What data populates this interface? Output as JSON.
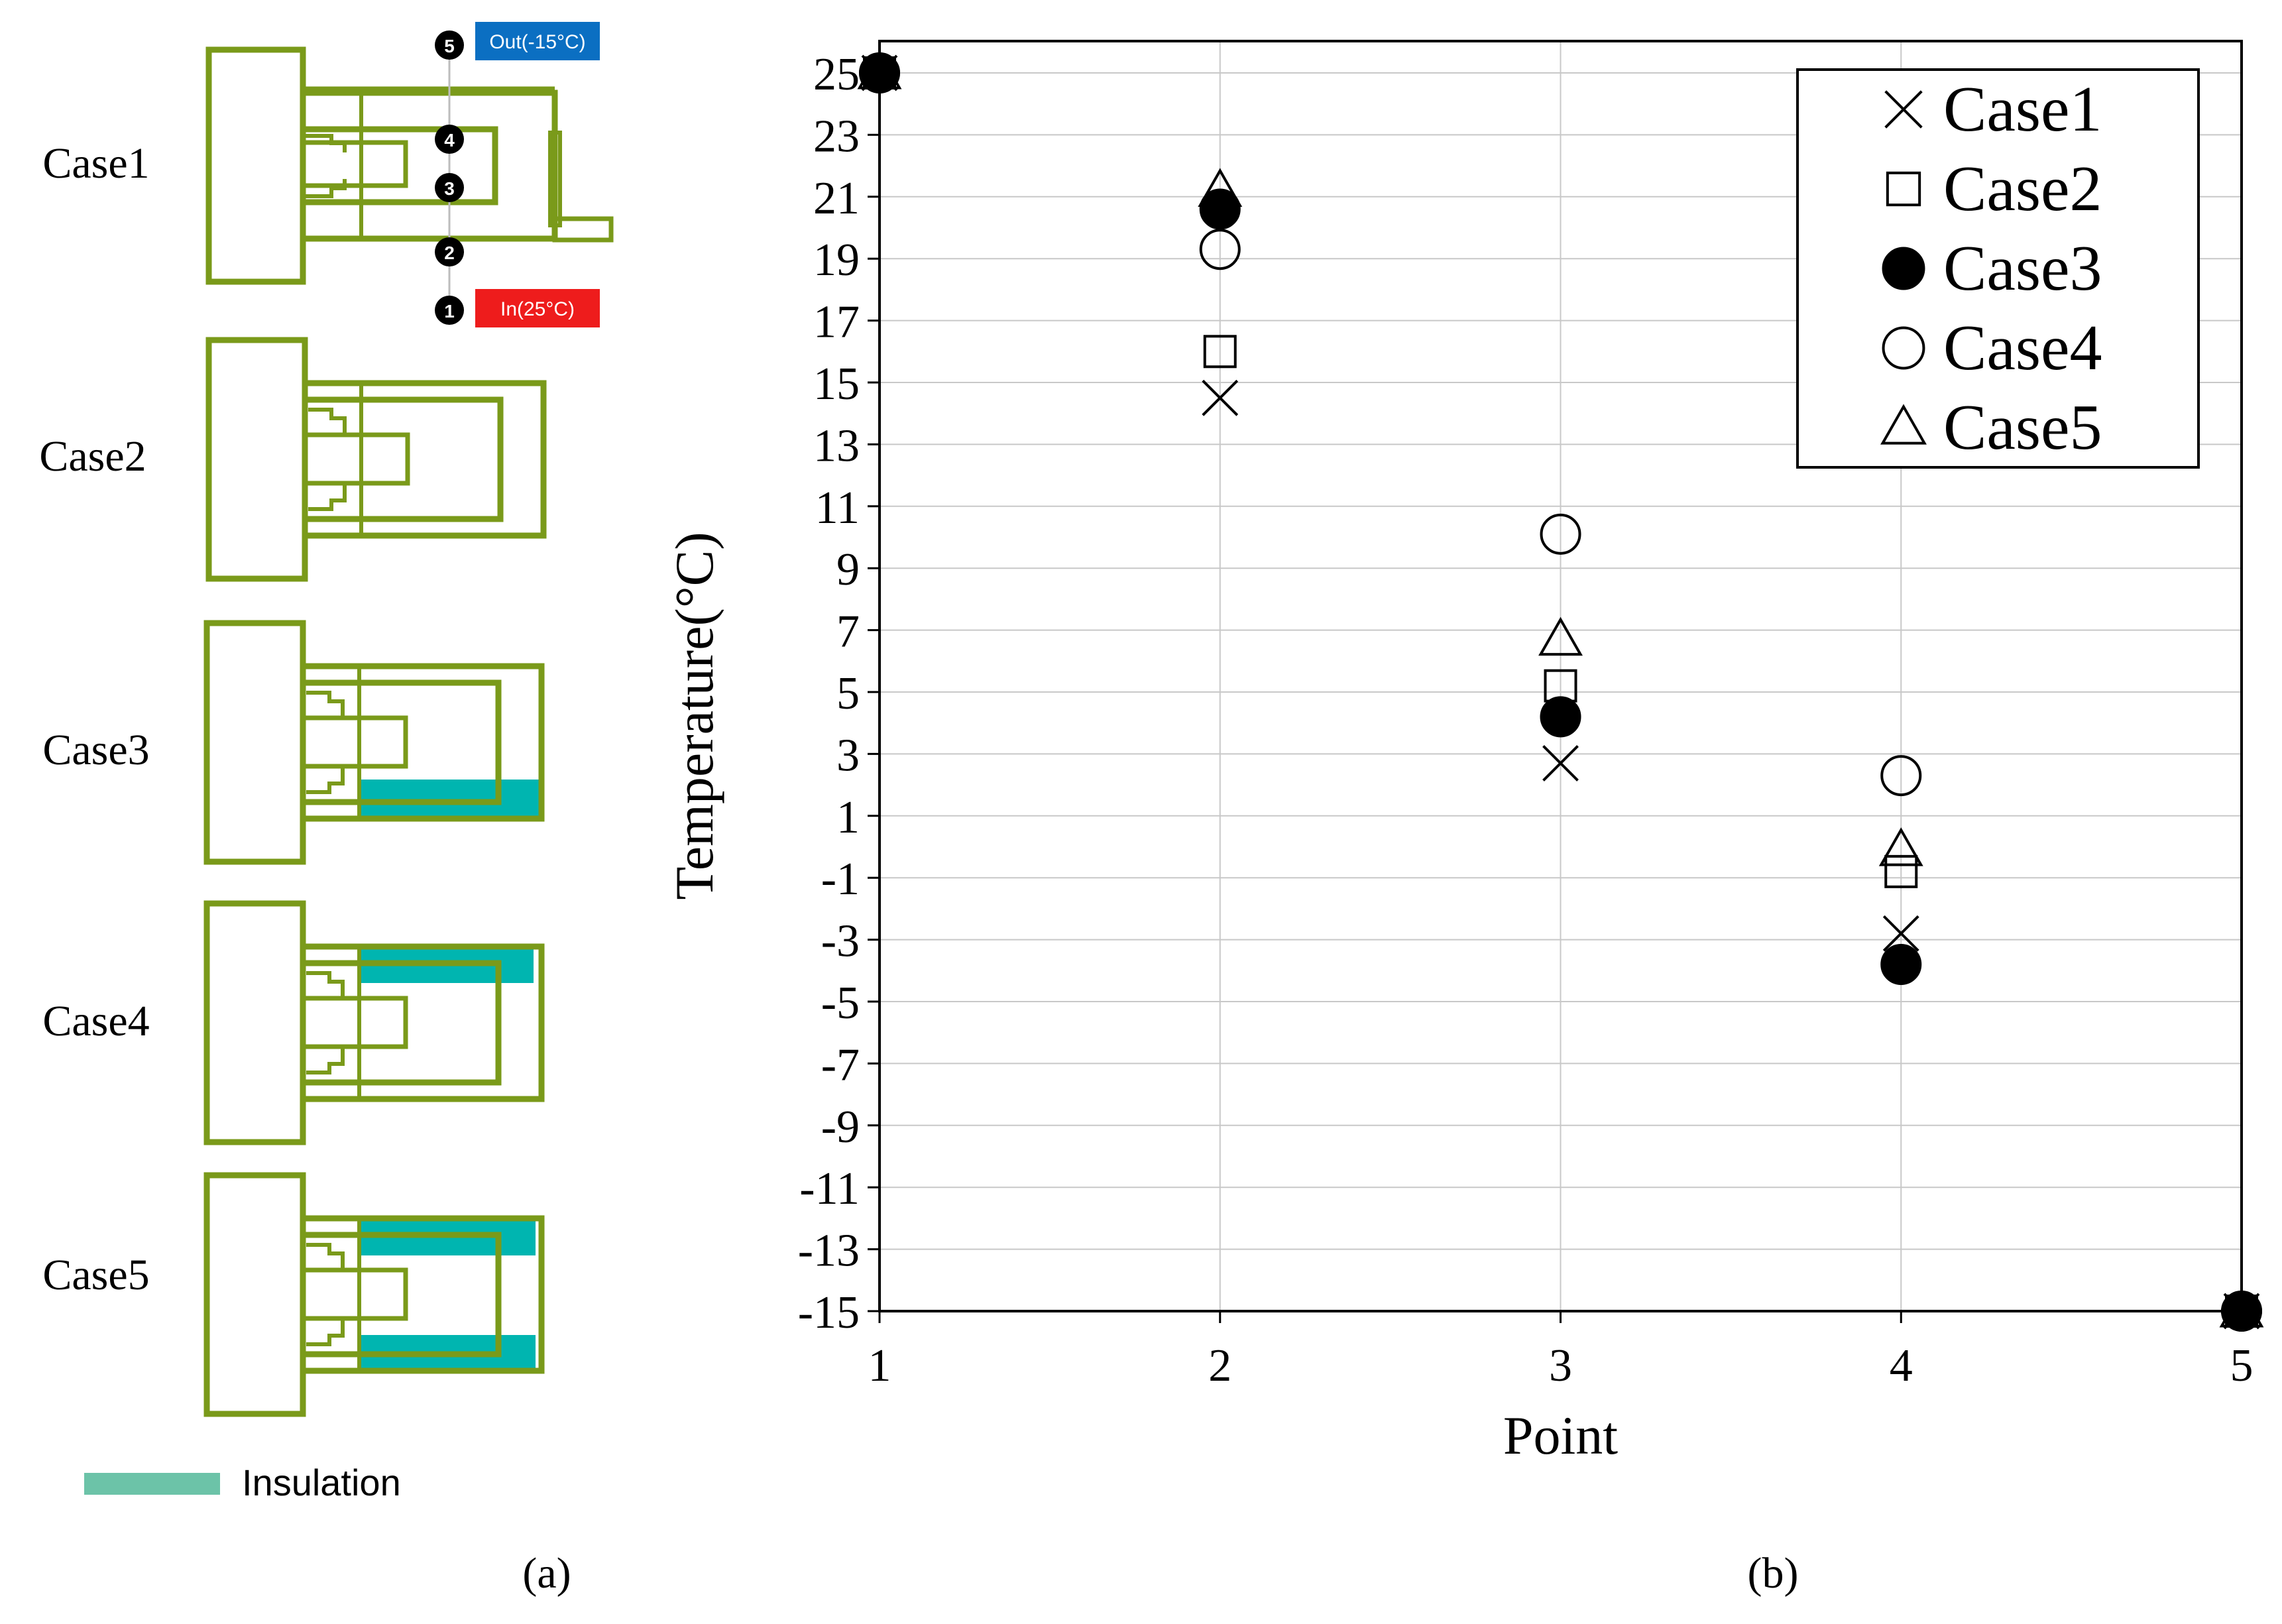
{
  "panel_a": {
    "caption": "(a)",
    "cases": [
      "Case1",
      "Case2",
      "Case3",
      "Case4",
      "Case5"
    ],
    "point_labels": [
      "1",
      "2",
      "3",
      "4",
      "5"
    ],
    "out_label": "Out(-15°C)",
    "in_label": "In(25°C)",
    "legend_label": "Insulation",
    "colors": {
      "frame": "#7a9a1a",
      "insulation": "#00b5b0",
      "legend_swatch": "#6cc3a8",
      "out_bg": "#0b6fc2",
      "in_bg": "#ee1c1c"
    }
  },
  "panel_b": {
    "caption": "(b)"
  },
  "chart_data": {
    "type": "scatter",
    "xlabel": "Point",
    "ylabel": "Temperature(°C)",
    "xlim": [
      1,
      5
    ],
    "ylim": [
      -15,
      26
    ],
    "xticks": [
      1,
      2,
      3,
      4,
      5
    ],
    "yticks": [
      25,
      23,
      21,
      19,
      17,
      15,
      13,
      11,
      9,
      7,
      5,
      3,
      1,
      -1,
      -3,
      -5,
      -7,
      -9,
      -11,
      -13,
      -15
    ],
    "grid": true,
    "legend_position": "top-right",
    "series": [
      {
        "name": "Case1",
        "marker": "x",
        "x": [
          1,
          2,
          3,
          4,
          5
        ],
        "y": [
          25,
          14.5,
          2.7,
          -2.8,
          -15
        ]
      },
      {
        "name": "Case2",
        "marker": "square",
        "x": [
          1,
          2,
          3,
          4,
          5
        ],
        "y": [
          25,
          16.0,
          5.2,
          -0.8,
          -15
        ]
      },
      {
        "name": "Case3",
        "marker": "filled-circle",
        "x": [
          1,
          2,
          3,
          4,
          5
        ],
        "y": [
          25,
          20.6,
          4.2,
          -3.8,
          -15
        ]
      },
      {
        "name": "Case4",
        "marker": "circle",
        "x": [
          1,
          2,
          3,
          4,
          5
        ],
        "y": [
          25,
          19.3,
          10.1,
          2.3,
          -15
        ]
      },
      {
        "name": "Case5",
        "marker": "triangle",
        "x": [
          1,
          2,
          3,
          4,
          5
        ],
        "y": [
          25,
          21.2,
          6.7,
          -0.1,
          -15
        ]
      }
    ]
  }
}
